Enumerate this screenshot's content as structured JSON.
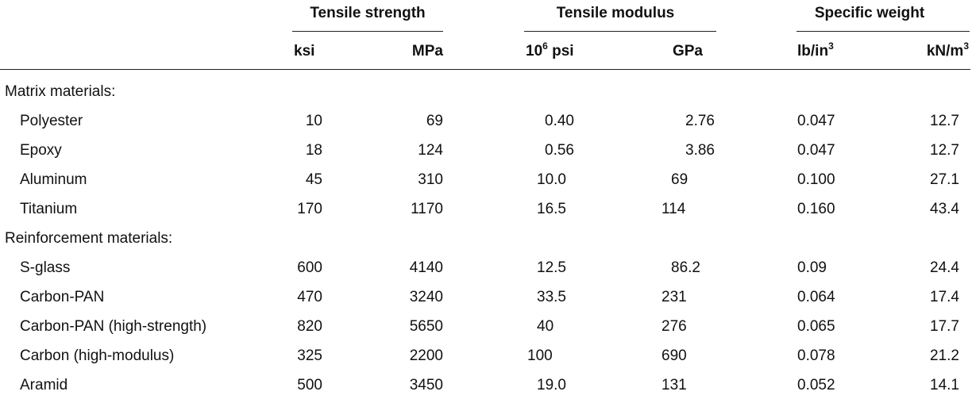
{
  "header": {
    "groups": [
      {
        "label": "Tensile strength"
      },
      {
        "label": "Tensile modulus"
      },
      {
        "label": "Specific weight"
      }
    ],
    "units": {
      "ksi": "ksi",
      "mpa": "MPa",
      "psi_base": "10",
      "psi_exp": "6",
      "psi_unit": " psi",
      "gpa": "GPa",
      "lbin_base": "lb/in",
      "lbin_exp": "3",
      "knm_base": "kN/m",
      "knm_exp": "3"
    }
  },
  "sections": [
    {
      "label": "Matrix materials:",
      "rows": [
        {
          "name": "Polyester",
          "ksi": "10",
          "mpa": "69",
          "psi": "0.40",
          "gpa": "2.76",
          "lbin": "0.047",
          "knm": "12.7"
        },
        {
          "name": "Epoxy",
          "ksi": "18",
          "mpa": "124",
          "psi": "0.56",
          "gpa": "3.86",
          "lbin": "0.047",
          "knm": "12.7"
        },
        {
          "name": "Aluminum",
          "ksi": "45",
          "mpa": "310",
          "psi": "10.0",
          "gpa": "69",
          "lbin": "0.100",
          "knm": "27.1"
        },
        {
          "name": "Titanium",
          "ksi": "170",
          "mpa": "1170",
          "psi": "16.5",
          "gpa": "114",
          "lbin": "0.160",
          "knm": "43.4"
        }
      ]
    },
    {
      "label": "Reinforcement materials:",
      "rows": [
        {
          "name": "S-glass",
          "ksi": "600",
          "mpa": "4140",
          "psi": "12.5",
          "gpa": "86.2",
          "lbin": "0.09",
          "knm": "24.4"
        },
        {
          "name": "Carbon-PAN",
          "ksi": "470",
          "mpa": "3240",
          "psi": "33.5",
          "gpa": "231",
          "lbin": "0.064",
          "knm": "17.4"
        },
        {
          "name": "Carbon-PAN (high-strength)",
          "ksi": "820",
          "mpa": "5650",
          "psi": "40",
          "gpa": "276",
          "lbin": "0.065",
          "knm": "17.7"
        },
        {
          "name": "Carbon (high-modulus)",
          "ksi": "325",
          "mpa": "2200",
          "psi": "100",
          "gpa": "690",
          "lbin": "0.078",
          "knm": "21.2"
        },
        {
          "name": "Aramid",
          "ksi": "500",
          "mpa": "3450",
          "psi": "19.0",
          "gpa": "131",
          "lbin": "0.052",
          "knm": "14.1"
        }
      ]
    }
  ]
}
